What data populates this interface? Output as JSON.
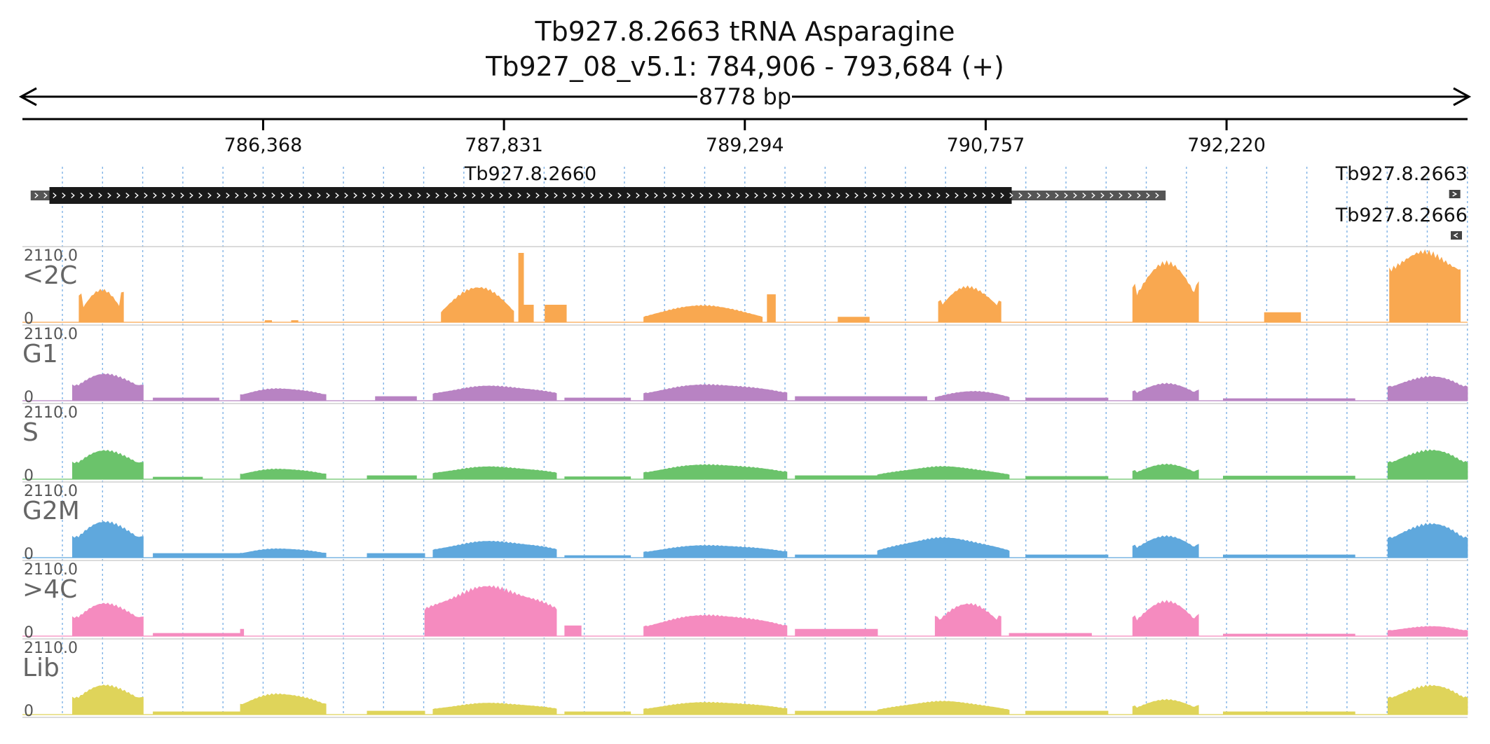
{
  "header": {
    "title": "Tb927.8.2663  tRNA Asparagine",
    "location": "Tb927_08_v5.1: 784,906 - 793,684 (+)",
    "span_label": "8778 bp"
  },
  "chart_data": {
    "type": "area",
    "chromosome": "Tb927_08_v5.1",
    "x_range": [
      784906,
      793684
    ],
    "x_ticks": [
      786368,
      787831,
      789294,
      790757,
      792220
    ],
    "x_tick_labels": [
      "786,368",
      "787,831",
      "789,294",
      "790,757",
      "792,220"
    ],
    "genes": [
      {
        "name": "Tb927.8.2660",
        "strand": "+",
        "start": 784956,
        "end": 791850,
        "cds_start": 785070,
        "cds_end": 790915
      },
      {
        "name": "Tb927.8.2663",
        "strand": "+",
        "start": 793580,
        "end": 793640
      },
      {
        "name": "Tb927.8.2666",
        "strand": "-",
        "start": 793580,
        "end": 793650
      }
    ],
    "tracks": [
      {
        "name": "<2C",
        "color": "#f9a850",
        "max_label": "2110.0",
        "min_label": "0",
        "ylim": [
          0,
          2110
        ],
        "segments": [
          [
            785250,
            785520,
            1000,
            "hump",
            0.25,
            0.9
          ],
          [
            786380,
            786420,
            50,
            "flat"
          ],
          [
            786540,
            786580,
            50,
            "flat"
          ],
          [
            787450,
            787890,
            1100,
            "hump",
            0.3,
            0.3
          ],
          [
            787920,
            787950,
            2000,
            "flat"
          ],
          [
            787950,
            788010,
            500,
            "flat"
          ],
          [
            788080,
            788210,
            500,
            "flat"
          ],
          [
            788680,
            789400,
            500,
            "hump",
            0.35,
            0.25
          ],
          [
            789430,
            789480,
            800,
            "flat"
          ],
          [
            789860,
            790050,
            150,
            "flat"
          ],
          [
            790470,
            790850,
            1100,
            "hump",
            0.35,
            0.6
          ],
          [
            791650,
            792050,
            1800,
            "hump",
            0.35,
            0.65
          ],
          [
            792450,
            792670,
            280,
            "flat"
          ],
          [
            793210,
            793640,
            2110,
            "hump",
            0.8,
            0.6
          ]
        ]
      },
      {
        "name": "G1",
        "color": "#b883c3",
        "max_label": "2110.0",
        "min_label": "0",
        "ylim": [
          0,
          2110
        ],
        "segments": [
          [
            785210,
            785640,
            820,
            "hump",
            0.45,
            0.6
          ],
          [
            785700,
            786100,
            80,
            "flat"
          ],
          [
            786230,
            786750,
            380,
            "hump",
            0.45,
            0.5
          ],
          [
            787050,
            787300,
            120,
            "flat"
          ],
          [
            787400,
            788150,
            450,
            "hump",
            0.5,
            0.5
          ],
          [
            788200,
            788600,
            80,
            "flat"
          ],
          [
            788680,
            789550,
            500,
            "hump",
            0.45,
            0.5
          ],
          [
            789600,
            790400,
            120,
            "flat"
          ],
          [
            790450,
            790900,
            300,
            "hump",
            0.35,
            0.3
          ],
          [
            791000,
            791500,
            80,
            "flat"
          ],
          [
            791650,
            792050,
            520,
            "hump",
            0.35,
            0.6
          ],
          [
            792200,
            793000,
            60,
            "flat"
          ],
          [
            793200,
            793684,
            750,
            "hump",
            0.5,
            0.6
          ]
        ]
      },
      {
        "name": "S",
        "color": "#6bc36b",
        "max_label": "2110.0",
        "min_label": "0",
        "ylim": [
          0,
          2110
        ],
        "segments": [
          [
            785210,
            785640,
            880,
            "hump",
            0.45,
            0.6
          ],
          [
            785700,
            786000,
            60,
            "flat"
          ],
          [
            786230,
            786750,
            320,
            "hump",
            0.45,
            0.5
          ],
          [
            787000,
            787300,
            100,
            "flat"
          ],
          [
            787400,
            788150,
            380,
            "hump",
            0.5,
            0.5
          ],
          [
            788200,
            788600,
            70,
            "flat"
          ],
          [
            788680,
            789550,
            450,
            "hump",
            0.45,
            0.5
          ],
          [
            789600,
            790100,
            100,
            "flat"
          ],
          [
            790100,
            790900,
            380,
            "hump",
            0.35,
            0.3
          ],
          [
            791000,
            791500,
            80,
            "flat"
          ],
          [
            791650,
            792050,
            450,
            "hump",
            0.35,
            0.6
          ],
          [
            792200,
            793000,
            90,
            "flat"
          ],
          [
            793200,
            793684,
            900,
            "hump",
            0.5,
            0.6
          ]
        ]
      },
      {
        "name": "G2M",
        "color": "#5fa8dd",
        "max_label": "2110.0",
        "min_label": "0",
        "ylim": [
          0,
          2110
        ],
        "segments": [
          [
            785210,
            785640,
            1100,
            "hump",
            0.45,
            0.6
          ],
          [
            785700,
            786230,
            120,
            "flat"
          ],
          [
            786230,
            786750,
            280,
            "hump",
            0.45,
            0.5
          ],
          [
            787000,
            787350,
            120,
            "flat"
          ],
          [
            787400,
            788150,
            500,
            "hump",
            0.5,
            0.5
          ],
          [
            788200,
            788600,
            60,
            "flat"
          ],
          [
            788680,
            789550,
            380,
            "hump",
            0.45,
            0.5
          ],
          [
            789600,
            790100,
            80,
            "flat"
          ],
          [
            790100,
            790900,
            600,
            "hump",
            0.35,
            0.3
          ],
          [
            791000,
            791500,
            80,
            "flat"
          ],
          [
            791650,
            792050,
            650,
            "hump",
            0.35,
            0.6
          ],
          [
            792200,
            793000,
            80,
            "flat"
          ],
          [
            793200,
            793684,
            1050,
            "hump",
            0.5,
            0.6
          ]
        ]
      },
      {
        "name": ">4C",
        "color": "#f58bbf",
        "max_label": "2110.0",
        "min_label": "0",
        "ylim": [
          0,
          2110
        ],
        "segments": [
          [
            785210,
            785640,
            1000,
            "hump",
            0.45,
            0.6
          ],
          [
            785700,
            786230,
            80,
            "flat"
          ],
          [
            786230,
            786250,
            200,
            "flat"
          ],
          [
            787350,
            788150,
            1500,
            "hump",
            0.55,
            0.5
          ],
          [
            788200,
            788300,
            300,
            "flat"
          ],
          [
            788680,
            789550,
            650,
            "hump",
            0.45,
            0.5
          ],
          [
            789600,
            790100,
            200,
            "flat"
          ],
          [
            790450,
            790850,
            1050,
            "hump",
            0.35,
            0.6
          ],
          [
            790900,
            791400,
            80,
            "flat"
          ],
          [
            791650,
            792050,
            1050,
            "hump",
            0.35,
            0.6
          ],
          [
            792200,
            793000,
            60,
            "flat"
          ],
          [
            793200,
            793684,
            300,
            "hump",
            0.5,
            0.6
          ]
        ]
      },
      {
        "name": "Lib",
        "color": "#dfd45a",
        "max_label": "2110.0",
        "min_label": "0",
        "ylim": [
          0,
          2110
        ],
        "segments": [
          [
            785210,
            785640,
            900,
            "hump",
            0.45,
            0.6
          ],
          [
            785700,
            786230,
            80,
            "flat"
          ],
          [
            786230,
            786750,
            650,
            "hump",
            0.45,
            0.5
          ],
          [
            787000,
            787350,
            100,
            "flat"
          ],
          [
            787400,
            788150,
            350,
            "hump",
            0.5,
            0.5
          ],
          [
            788200,
            788600,
            80,
            "flat"
          ],
          [
            788680,
            789550,
            380,
            "hump",
            0.45,
            0.5
          ],
          [
            789600,
            790100,
            100,
            "flat"
          ],
          [
            790100,
            790900,
            400,
            "hump",
            0.35,
            0.3
          ],
          [
            791000,
            791500,
            100,
            "flat"
          ],
          [
            791650,
            792050,
            450,
            "hump",
            0.35,
            0.6
          ],
          [
            792200,
            793000,
            80,
            "flat"
          ],
          [
            793200,
            793684,
            900,
            "hump",
            0.5,
            0.6
          ]
        ]
      }
    ]
  }
}
